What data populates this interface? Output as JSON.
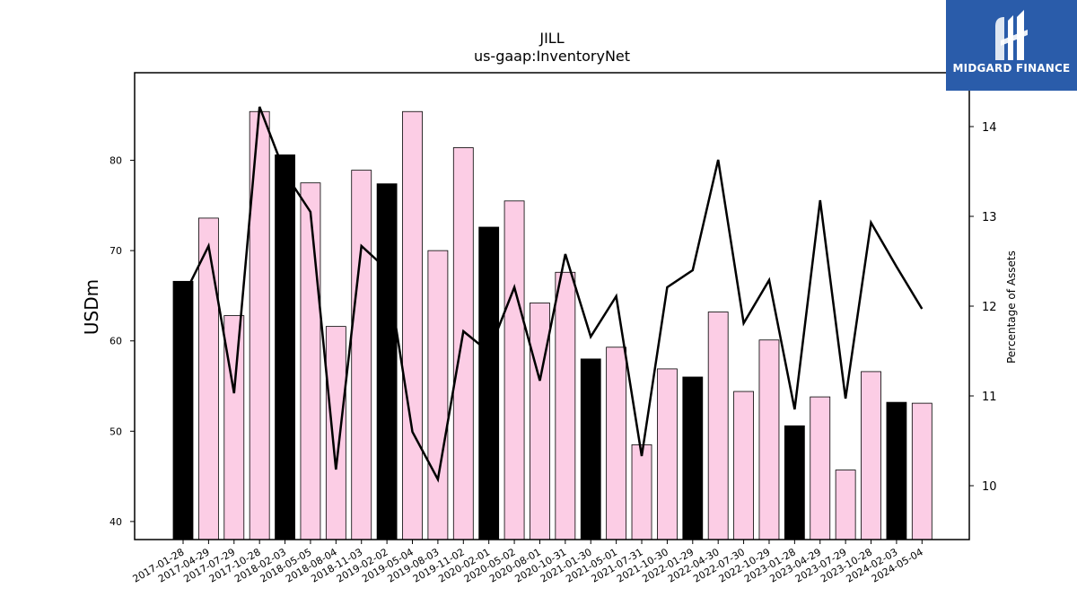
{
  "chart_data": {
    "type": "bar",
    "title": "JILL",
    "subtitle": "us-gaap:InventoryNet",
    "ylabel": "USDm",
    "y2label": "Percentage of Assets",
    "categories": [
      "2017-01-28",
      "2017-04-29",
      "2017-07-29",
      "2017-10-28",
      "2018-02-03",
      "2018-05-05",
      "2018-08-04",
      "2018-11-03",
      "2019-02-02",
      "2019-05-04",
      "2019-08-03",
      "2019-11-02",
      "2020-02-01",
      "2020-05-02",
      "2020-08-01",
      "2020-10-31",
      "2021-01-30",
      "2021-05-01",
      "2021-07-31",
      "2021-10-30",
      "2022-01-29",
      "2022-04-30",
      "2022-07-30",
      "2022-10-29",
      "2023-01-28",
      "2023-04-29",
      "2023-07-29",
      "2023-10-28",
      "2024-02-03",
      "2024-05-04"
    ],
    "series": [
      {
        "values": [
          66.6,
          73.6,
          62.8,
          85.4,
          80.6,
          77.5,
          61.6,
          78.9,
          77.4,
          85.4,
          70.0,
          81.4,
          72.6,
          75.5,
          64.2,
          67.6,
          58.0,
          59.3,
          48.5,
          56.9,
          56.0,
          63.2,
          54.4,
          60.1,
          50.6,
          53.8,
          45.7,
          56.6,
          53.2,
          53.1
        ],
        "highlight": [
          true,
          false,
          false,
          false,
          true,
          false,
          false,
          false,
          true,
          false,
          false,
          false,
          true,
          false,
          false,
          false,
          true,
          false,
          false,
          false,
          true,
          false,
          false,
          false,
          true,
          false,
          false,
          false,
          true,
          false
        ],
        "colors": {
          "highlight": "#000000",
          "normal": "#fccde5",
          "edge": "#000000"
        }
      },
      {
        "axis": "right",
        "values": [
          12.1,
          12.67,
          11.03,
          14.22,
          13.48,
          13.05,
          10.18,
          12.67,
          12.41,
          10.6,
          10.07,
          11.72,
          11.49,
          12.21,
          11.17,
          12.58,
          11.66,
          12.11,
          10.33,
          12.21,
          12.4,
          13.63,
          11.81,
          12.29,
          10.85,
          13.18,
          10.97,
          12.93,
          12.44,
          11.97
        ],
        "color": "#000000"
      }
    ],
    "ylim": [
      38,
      89.7
    ],
    "y2lim": [
      9.4,
      14.6
    ],
    "yticks": [
      40,
      50,
      60,
      70,
      80
    ],
    "y2ticks": [
      10,
      11,
      12,
      13,
      14
    ],
    "grid": false
  },
  "logo": {
    "text": "MIDGARD FINANCE",
    "color": "#2a5caa"
  }
}
